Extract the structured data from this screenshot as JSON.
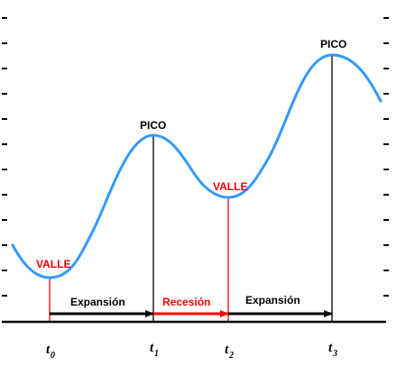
{
  "diagram": {
    "labels": {
      "valle": "VALLE",
      "pico": "PICO",
      "expansion": "Expansión",
      "recesion": "Recesión"
    },
    "time_marks": [
      {
        "letter": "t",
        "sub": "0"
      },
      {
        "letter": "t",
        "sub": "1"
      },
      {
        "letter": "t",
        "sub": "2"
      },
      {
        "letter": "t",
        "sub": "3"
      }
    ],
    "colors": {
      "curve": "#3399ff",
      "valle_text": "#ff0000",
      "pico_text": "#000000",
      "recesion": "#ff0000",
      "expansion": "#000000",
      "axis": "#000000"
    }
  }
}
